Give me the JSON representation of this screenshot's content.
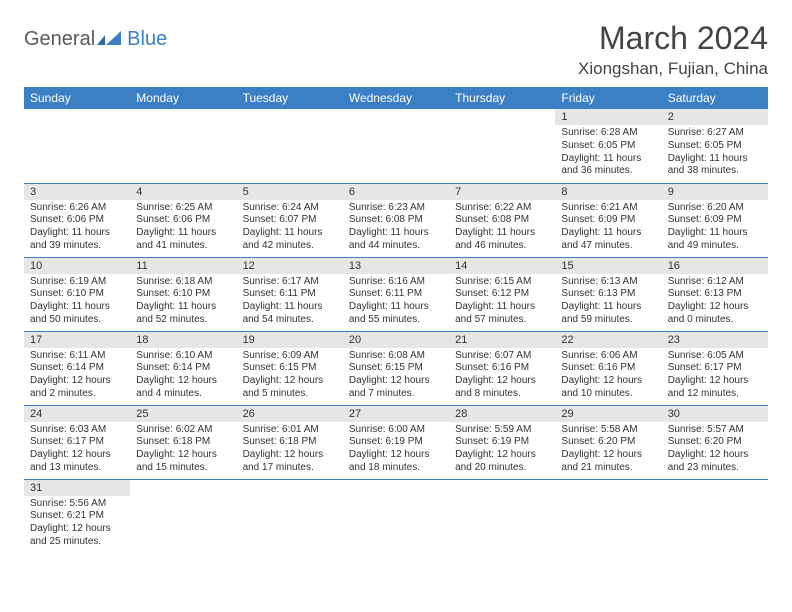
{
  "logo": {
    "general": "General",
    "blue": "Blue"
  },
  "title": "March 2024",
  "location": "Xiongshan, Fujian, China",
  "colors": {
    "header_bg": "#3b7fc4",
    "header_text": "#ffffff",
    "day_num_bg": "#e6e6e6",
    "border": "#3b7fc4",
    "text": "#333333",
    "logo_gray": "#5a5a5a",
    "logo_blue": "#3b7fc4"
  },
  "weekdays": [
    "Sunday",
    "Monday",
    "Tuesday",
    "Wednesday",
    "Thursday",
    "Friday",
    "Saturday"
  ],
  "weeks": [
    [
      null,
      null,
      null,
      null,
      null,
      {
        "n": "1",
        "sr": "Sunrise: 6:28 AM",
        "ss": "Sunset: 6:05 PM",
        "dl": "Daylight: 11 hours and 36 minutes."
      },
      {
        "n": "2",
        "sr": "Sunrise: 6:27 AM",
        "ss": "Sunset: 6:05 PM",
        "dl": "Daylight: 11 hours and 38 minutes."
      }
    ],
    [
      {
        "n": "3",
        "sr": "Sunrise: 6:26 AM",
        "ss": "Sunset: 6:06 PM",
        "dl": "Daylight: 11 hours and 39 minutes."
      },
      {
        "n": "4",
        "sr": "Sunrise: 6:25 AM",
        "ss": "Sunset: 6:06 PM",
        "dl": "Daylight: 11 hours and 41 minutes."
      },
      {
        "n": "5",
        "sr": "Sunrise: 6:24 AM",
        "ss": "Sunset: 6:07 PM",
        "dl": "Daylight: 11 hours and 42 minutes."
      },
      {
        "n": "6",
        "sr": "Sunrise: 6:23 AM",
        "ss": "Sunset: 6:08 PM",
        "dl": "Daylight: 11 hours and 44 minutes."
      },
      {
        "n": "7",
        "sr": "Sunrise: 6:22 AM",
        "ss": "Sunset: 6:08 PM",
        "dl": "Daylight: 11 hours and 46 minutes."
      },
      {
        "n": "8",
        "sr": "Sunrise: 6:21 AM",
        "ss": "Sunset: 6:09 PM",
        "dl": "Daylight: 11 hours and 47 minutes."
      },
      {
        "n": "9",
        "sr": "Sunrise: 6:20 AM",
        "ss": "Sunset: 6:09 PM",
        "dl": "Daylight: 11 hours and 49 minutes."
      }
    ],
    [
      {
        "n": "10",
        "sr": "Sunrise: 6:19 AM",
        "ss": "Sunset: 6:10 PM",
        "dl": "Daylight: 11 hours and 50 minutes."
      },
      {
        "n": "11",
        "sr": "Sunrise: 6:18 AM",
        "ss": "Sunset: 6:10 PM",
        "dl": "Daylight: 11 hours and 52 minutes."
      },
      {
        "n": "12",
        "sr": "Sunrise: 6:17 AM",
        "ss": "Sunset: 6:11 PM",
        "dl": "Daylight: 11 hours and 54 minutes."
      },
      {
        "n": "13",
        "sr": "Sunrise: 6:16 AM",
        "ss": "Sunset: 6:11 PM",
        "dl": "Daylight: 11 hours and 55 minutes."
      },
      {
        "n": "14",
        "sr": "Sunrise: 6:15 AM",
        "ss": "Sunset: 6:12 PM",
        "dl": "Daylight: 11 hours and 57 minutes."
      },
      {
        "n": "15",
        "sr": "Sunrise: 6:13 AM",
        "ss": "Sunset: 6:13 PM",
        "dl": "Daylight: 11 hours and 59 minutes."
      },
      {
        "n": "16",
        "sr": "Sunrise: 6:12 AM",
        "ss": "Sunset: 6:13 PM",
        "dl": "Daylight: 12 hours and 0 minutes."
      }
    ],
    [
      {
        "n": "17",
        "sr": "Sunrise: 6:11 AM",
        "ss": "Sunset: 6:14 PM",
        "dl": "Daylight: 12 hours and 2 minutes."
      },
      {
        "n": "18",
        "sr": "Sunrise: 6:10 AM",
        "ss": "Sunset: 6:14 PM",
        "dl": "Daylight: 12 hours and 4 minutes."
      },
      {
        "n": "19",
        "sr": "Sunrise: 6:09 AM",
        "ss": "Sunset: 6:15 PM",
        "dl": "Daylight: 12 hours and 5 minutes."
      },
      {
        "n": "20",
        "sr": "Sunrise: 6:08 AM",
        "ss": "Sunset: 6:15 PM",
        "dl": "Daylight: 12 hours and 7 minutes."
      },
      {
        "n": "21",
        "sr": "Sunrise: 6:07 AM",
        "ss": "Sunset: 6:16 PM",
        "dl": "Daylight: 12 hours and 8 minutes."
      },
      {
        "n": "22",
        "sr": "Sunrise: 6:06 AM",
        "ss": "Sunset: 6:16 PM",
        "dl": "Daylight: 12 hours and 10 minutes."
      },
      {
        "n": "23",
        "sr": "Sunrise: 6:05 AM",
        "ss": "Sunset: 6:17 PM",
        "dl": "Daylight: 12 hours and 12 minutes."
      }
    ],
    [
      {
        "n": "24",
        "sr": "Sunrise: 6:03 AM",
        "ss": "Sunset: 6:17 PM",
        "dl": "Daylight: 12 hours and 13 minutes."
      },
      {
        "n": "25",
        "sr": "Sunrise: 6:02 AM",
        "ss": "Sunset: 6:18 PM",
        "dl": "Daylight: 12 hours and 15 minutes."
      },
      {
        "n": "26",
        "sr": "Sunrise: 6:01 AM",
        "ss": "Sunset: 6:18 PM",
        "dl": "Daylight: 12 hours and 17 minutes."
      },
      {
        "n": "27",
        "sr": "Sunrise: 6:00 AM",
        "ss": "Sunset: 6:19 PM",
        "dl": "Daylight: 12 hours and 18 minutes."
      },
      {
        "n": "28",
        "sr": "Sunrise: 5:59 AM",
        "ss": "Sunset: 6:19 PM",
        "dl": "Daylight: 12 hours and 20 minutes."
      },
      {
        "n": "29",
        "sr": "Sunrise: 5:58 AM",
        "ss": "Sunset: 6:20 PM",
        "dl": "Daylight: 12 hours and 21 minutes."
      },
      {
        "n": "30",
        "sr": "Sunrise: 5:57 AM",
        "ss": "Sunset: 6:20 PM",
        "dl": "Daylight: 12 hours and 23 minutes."
      }
    ],
    [
      {
        "n": "31",
        "sr": "Sunrise: 5:56 AM",
        "ss": "Sunset: 6:21 PM",
        "dl": "Daylight: 12 hours and 25 minutes."
      },
      null,
      null,
      null,
      null,
      null,
      null
    ]
  ]
}
